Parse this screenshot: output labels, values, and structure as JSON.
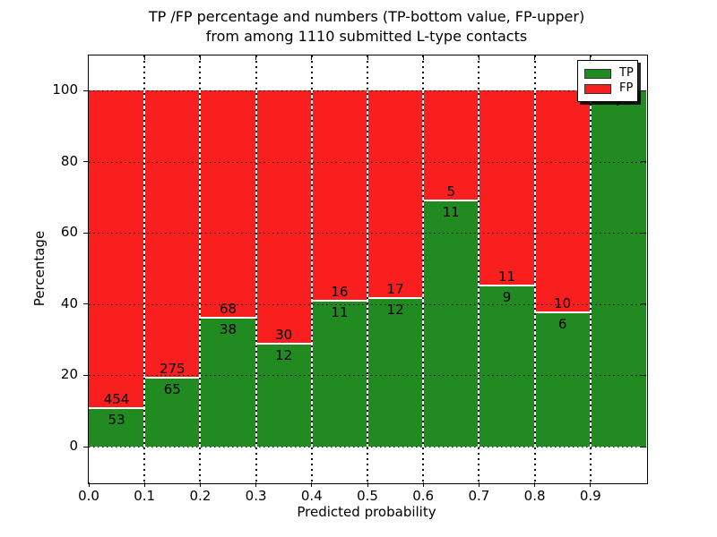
{
  "chart_data": {
    "type": "bar",
    "stacked": true,
    "title_lines": [
      "TP /FP percentage and numbers (TP-bottom value, FP-upper)",
      "from among 1110 submitted L-type contacts"
    ],
    "xlabel": "Predicted probability",
    "ylabel": "Percentage",
    "x_tick_labels": [
      "0.0",
      "0.1",
      "0.2",
      "0.3",
      "0.4",
      "0.5",
      "0.6",
      "0.7",
      "0.8",
      "0.9"
    ],
    "y_tick_values": [
      0,
      20,
      40,
      60,
      80,
      100
    ],
    "xlim": [
      0.0,
      1.0
    ],
    "ylim": [
      -10,
      110
    ],
    "grid": true,
    "grid_style": "dotted",
    "total_submitted": 1110,
    "colors": {
      "tp": "#218a21",
      "fp": "#f91f1f"
    },
    "legend": {
      "position": "upper right",
      "entries": [
        {
          "label": "TP",
          "color_key": "tp"
        },
        {
          "label": "FP",
          "color_key": "fp"
        }
      ]
    },
    "bins": [
      {
        "range": [
          0.0,
          0.1
        ],
        "tp": 53,
        "fp": 454
      },
      {
        "range": [
          0.1,
          0.2
        ],
        "tp": 65,
        "fp": 275
      },
      {
        "range": [
          0.2,
          0.3
        ],
        "tp": 38,
        "fp": 68
      },
      {
        "range": [
          0.3,
          0.4
        ],
        "tp": 12,
        "fp": 30
      },
      {
        "range": [
          0.4,
          0.5
        ],
        "tp": 11,
        "fp": 16
      },
      {
        "range": [
          0.5,
          0.6
        ],
        "tp": 12,
        "fp": 17
      },
      {
        "range": [
          0.6,
          0.7
        ],
        "tp": 11,
        "fp": 5
      },
      {
        "range": [
          0.7,
          0.8
        ],
        "tp": 9,
        "fp": 11
      },
      {
        "range": [
          0.8,
          0.9
        ],
        "tp": 6,
        "fp": 10
      },
      {
        "range": [
          0.9,
          1.0
        ],
        "tp": 7,
        "fp": 0
      }
    ],
    "series": [
      {
        "name": "TP",
        "unit": "percent_of_bin",
        "values": [
          10.45,
          19.12,
          35.85,
          28.57,
          40.74,
          41.38,
          68.75,
          45.0,
          37.5,
          100.0
        ]
      },
      {
        "name": "FP",
        "unit": "percent_of_bin",
        "values": [
          89.55,
          80.88,
          64.15,
          71.43,
          59.26,
          58.62,
          31.25,
          55.0,
          62.5,
          0.0
        ]
      }
    ]
  }
}
